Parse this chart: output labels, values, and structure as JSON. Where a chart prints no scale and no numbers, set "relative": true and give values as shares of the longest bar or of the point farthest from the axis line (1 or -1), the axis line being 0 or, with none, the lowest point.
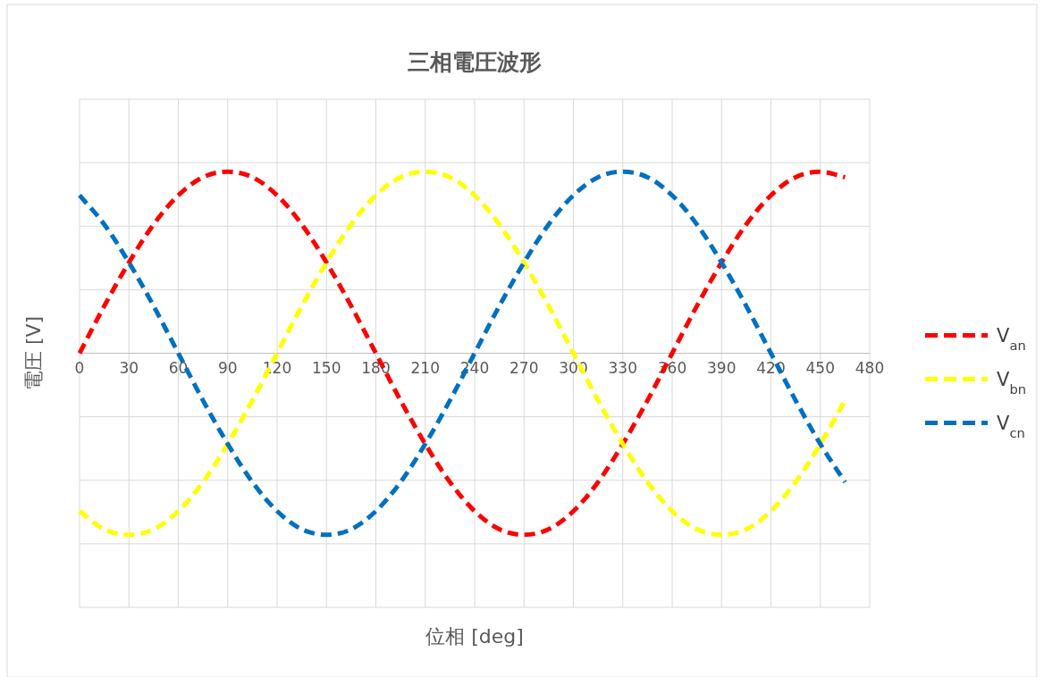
{
  "chart_data": {
    "type": "line",
    "title": "三相電圧波形",
    "xlabel": "位相 [deg]",
    "ylabel": "電圧 [V]",
    "relative": true,
    "xlim": [
      0,
      480
    ],
    "xticks": [
      0,
      30,
      60,
      90,
      120,
      150,
      180,
      210,
      240,
      270,
      300,
      330,
      360,
      390,
      420,
      450,
      480
    ],
    "grid": true,
    "legend": "right",
    "marker": "none",
    "line_style": "dashed",
    "x": [
      0,
      15,
      30,
      45,
      60,
      75,
      90,
      105,
      120,
      135,
      150,
      165,
      180,
      195,
      210,
      225,
      240,
      255,
      270,
      285,
      300,
      315,
      330,
      345,
      360,
      375,
      390,
      405,
      420,
      435,
      450,
      465
    ],
    "series": [
      {
        "name": "V$_{an}$",
        "color": "#ff0000",
        "values": [
          0,
          0.26,
          0.5,
          0.71,
          0.87,
          0.97,
          1,
          0.97,
          0.87,
          0.71,
          0.5,
          0.26,
          0,
          -0.26,
          -0.5,
          -0.71,
          -0.87,
          -0.97,
          -1,
          -0.97,
          -0.87,
          -0.71,
          -0.5,
          -0.26,
          0,
          0.26,
          0.5,
          0.71,
          0.87,
          0.97,
          1,
          0.97
        ]
      },
      {
        "name": "V$_{bn}$",
        "color": "#ffff00",
        "values": [
          -0.87,
          -0.97,
          -1,
          -0.97,
          -0.87,
          -0.71,
          -0.5,
          -0.26,
          0,
          0.26,
          0.5,
          0.71,
          0.87,
          0.97,
          1,
          0.97,
          0.87,
          0.71,
          0.5,
          0.26,
          0,
          -0.26,
          -0.5,
          -0.71,
          -0.87,
          -0.97,
          -1,
          -0.97,
          -0.87,
          -0.71,
          -0.5,
          -0.26
        ]
      },
      {
        "name": "V$_{cn}$",
        "color": "#0070c0",
        "values": [
          0.87,
          0.71,
          0.5,
          0.26,
          0,
          -0.26,
          -0.5,
          -0.71,
          -0.87,
          -0.97,
          -1,
          -0.97,
          -0.87,
          -0.71,
          -0.5,
          -0.26,
          0,
          0.26,
          0.5,
          0.71,
          0.87,
          0.97,
          1,
          0.97,
          0.87,
          0.71,
          0.5,
          0.26,
          0,
          -0.26,
          -0.5,
          -0.71
        ]
      }
    ]
  }
}
